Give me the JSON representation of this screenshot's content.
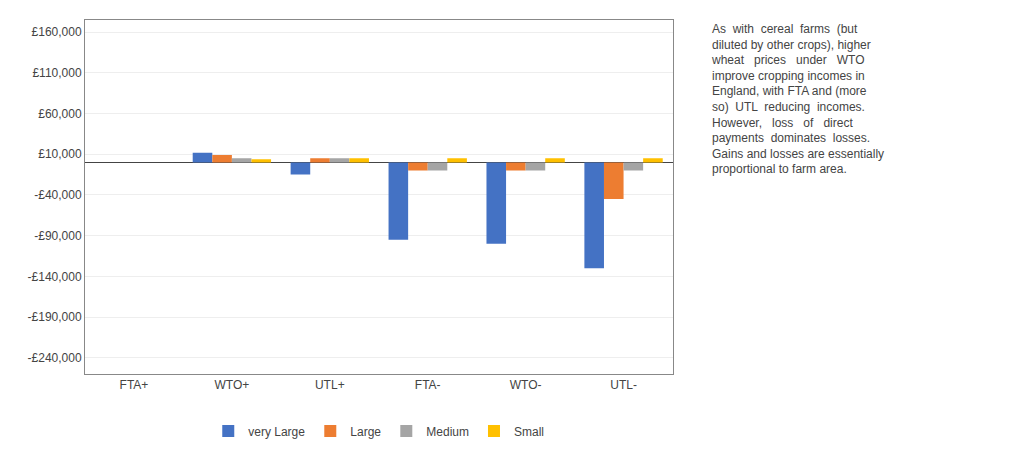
{
  "chart_data": {
    "type": "bar",
    "categories": [
      "FTA+",
      "WTO+",
      "UTL+",
      "FTA-",
      "WTO-",
      "UTL-"
    ],
    "series": [
      {
        "name": "very Large",
        "color": "#4472C4",
        "values": [
          0,
          12000,
          -15000,
          -95000,
          -100000,
          -130000
        ]
      },
      {
        "name": "Large",
        "color": "#ED7D31",
        "values": [
          0,
          9000,
          5000,
          -10000,
          -10000,
          -45000
        ]
      },
      {
        "name": "Medium",
        "color": "#A5A5A5",
        "values": [
          0,
          5000,
          5000,
          -10000,
          -10000,
          -10000
        ]
      },
      {
        "name": "Small",
        "color": "#FFC000",
        "values": [
          0,
          4000,
          5000,
          5000,
          5000,
          5000
        ]
      }
    ],
    "ylim": [
      -260000,
      175000
    ],
    "yticks": [
      {
        "value": -240000,
        "label": "-£240,000"
      },
      {
        "value": -190000,
        "label": "-£190,000"
      },
      {
        "value": -140000,
        "label": "-£140,000"
      },
      {
        "value": -90000,
        "label": "-£90,000"
      },
      {
        "value": -40000,
        "label": "-£40,000"
      },
      {
        "value": 10000,
        "label": "£10,000"
      },
      {
        "value": 60000,
        "label": "£60,000"
      },
      {
        "value": 110000,
        "label": "£110,000"
      },
      {
        "value": 160000,
        "label": "£160,000"
      }
    ],
    "grid": true,
    "legend": "bottom",
    "annotations": [
      "As  with  cereal  farms  (but\ndiluted by other crops), higher\nwheat   prices   under   WTO\nimprove cropping incomes in\nEngland, with FTA and (more\nso)  UTL  reducing  incomes.\nHowever,   loss   of   direct\npayments  dominates  losses.\nGains and losses are essentially\nproportional to farm area."
    ]
  }
}
